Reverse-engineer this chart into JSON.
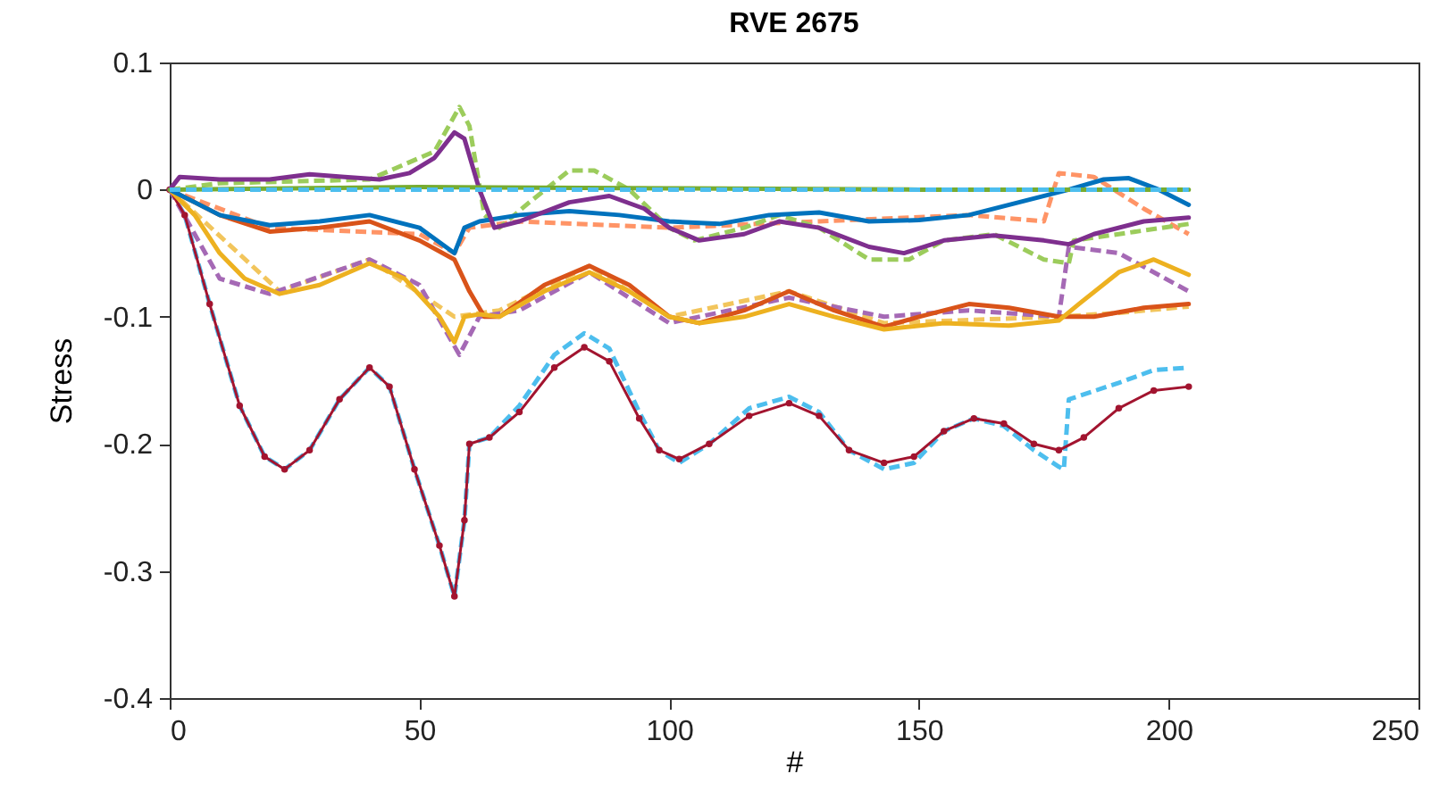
{
  "chart_data": {
    "type": "line",
    "title": "RVE 2675",
    "xlabel": "#",
    "ylabel": "Stress",
    "xlim": [
      0,
      250
    ],
    "xticks": [
      0,
      50,
      100,
      150,
      200,
      250
    ],
    "ylim": [
      -0.4,
      0.1
    ],
    "yticks": [
      -0.4,
      -0.3,
      -0.2,
      -0.1,
      0,
      0.1
    ],
    "grid": false,
    "series": [
      {
        "color": "#4dbeee",
        "line_style": "dashed",
        "x": [
          0,
          3,
          8,
          14,
          19,
          23,
          28,
          34,
          40,
          44,
          49,
          54,
          57,
          59,
          60,
          64,
          70,
          77,
          83,
          88,
          94,
          98,
          102,
          108,
          116,
          124,
          130,
          136,
          143,
          149,
          155,
          161,
          167,
          173,
          178,
          179,
          180,
          190,
          197,
          204
        ],
        "values": [
          0,
          -0.02,
          -0.09,
          -0.17,
          -0.21,
          -0.22,
          -0.205,
          -0.165,
          -0.14,
          -0.155,
          -0.22,
          -0.28,
          -0.32,
          -0.26,
          -0.2,
          -0.195,
          -0.17,
          -0.13,
          -0.113,
          -0.125,
          -0.175,
          -0.205,
          -0.215,
          -0.2,
          -0.172,
          -0.163,
          -0.175,
          -0.205,
          -0.22,
          -0.215,
          -0.19,
          -0.18,
          -0.186,
          -0.205,
          -0.218,
          -0.22,
          -0.165,
          -0.152,
          -0.142,
          -0.14
        ]
      },
      {
        "color": "#ff9466",
        "line_style": "dashed",
        "x": [
          0,
          20,
          50,
          57,
          60,
          70,
          100,
          130,
          160,
          175,
          178,
          185,
          195,
          204
        ],
        "values": [
          0,
          -0.03,
          -0.035,
          -0.05,
          -0.03,
          -0.025,
          -0.03,
          -0.025,
          -0.02,
          -0.025,
          0.013,
          0.01,
          -0.015,
          -0.035
        ]
      },
      {
        "color": "#f2c55c",
        "line_style": "dashed",
        "x": [
          0,
          22,
          40,
          57,
          66,
          84,
          100,
          124,
          143,
          178,
          190,
          204
        ],
        "values": [
          0,
          -0.08,
          -0.055,
          -0.1,
          -0.095,
          -0.06,
          -0.1,
          -0.08,
          -0.105,
          -0.1,
          -0.097,
          -0.092
        ]
      },
      {
        "color": "#a569b5",
        "line_style": "dashed",
        "x": [
          0,
          10,
          20,
          40,
          50,
          58,
          62,
          70,
          84,
          100,
          124,
          143,
          160,
          178,
          180,
          190,
          204
        ],
        "values": [
          0,
          -0.07,
          -0.082,
          -0.055,
          -0.075,
          -0.13,
          -0.1,
          -0.095,
          -0.065,
          -0.105,
          -0.085,
          -0.1,
          -0.095,
          -0.1,
          -0.045,
          -0.05,
          -0.08
        ]
      },
      {
        "color": "#9ccc5c",
        "line_style": "dashed",
        "x": [
          0,
          10,
          40,
          53,
          58,
          60,
          63,
          66,
          72,
          80,
          85,
          92,
          100,
          105,
          115,
          122,
          130,
          140,
          148,
          155,
          165,
          175,
          180,
          181,
          190,
          204
        ],
        "values": [
          0,
          0.005,
          0.008,
          0.03,
          0.065,
          0.05,
          -0.02,
          -0.03,
          -0.01,
          0.015,
          0.015,
          0,
          -0.03,
          -0.04,
          -0.03,
          -0.02,
          -0.03,
          -0.055,
          -0.055,
          -0.04,
          -0.035,
          -0.055,
          -0.058,
          -0.04,
          -0.035,
          -0.027
        ]
      },
      {
        "color": "#a2142f",
        "line_style": "solid",
        "marker": "circle",
        "x": [
          0,
          3,
          8,
          14,
          19,
          23,
          28,
          34,
          40,
          44,
          49,
          54,
          57,
          59,
          60,
          64,
          70,
          77,
          83,
          88,
          94,
          98,
          102,
          108,
          116,
          124,
          130,
          136,
          143,
          149,
          155,
          161,
          167,
          173,
          178,
          183,
          190,
          197,
          204
        ],
        "values": [
          0,
          -0.02,
          -0.09,
          -0.17,
          -0.21,
          -0.22,
          -0.205,
          -0.165,
          -0.14,
          -0.155,
          -0.22,
          -0.28,
          -0.32,
          -0.26,
          -0.2,
          -0.195,
          -0.175,
          -0.14,
          -0.124,
          -0.135,
          -0.18,
          -0.205,
          -0.212,
          -0.2,
          -0.178,
          -0.168,
          -0.178,
          -0.205,
          -0.215,
          -0.21,
          -0.19,
          -0.18,
          -0.184,
          -0.2,
          -0.205,
          -0.195,
          -0.172,
          -0.158,
          -0.155
        ]
      },
      {
        "color": "#d95319",
        "line_style": "solid",
        "x": [
          0,
          5,
          10,
          20,
          30,
          40,
          50,
          57,
          60,
          63,
          66,
          75,
          84,
          92,
          100,
          106,
          115,
          124,
          133,
          143,
          150,
          160,
          168,
          178,
          185,
          195,
          204
        ],
        "values": [
          0,
          -0.01,
          -0.02,
          -0.033,
          -0.03,
          -0.025,
          -0.04,
          -0.055,
          -0.08,
          -0.1,
          -0.1,
          -0.075,
          -0.06,
          -0.075,
          -0.1,
          -0.105,
          -0.095,
          -0.08,
          -0.095,
          -0.108,
          -0.1,
          -0.09,
          -0.093,
          -0.1,
          -0.1,
          -0.093,
          -0.09
        ]
      },
      {
        "color": "#edb120",
        "line_style": "solid",
        "x": [
          0,
          5,
          10,
          15,
          22,
          30,
          40,
          47,
          54,
          57,
          59,
          62,
          66,
          75,
          84,
          92,
          100,
          106,
          115,
          124,
          133,
          143,
          155,
          168,
          178,
          182,
          190,
          197,
          204
        ],
        "values": [
          0,
          -0.02,
          -0.05,
          -0.07,
          -0.082,
          -0.075,
          -0.058,
          -0.07,
          -0.1,
          -0.12,
          -0.1,
          -0.098,
          -0.1,
          -0.08,
          -0.065,
          -0.08,
          -0.1,
          -0.105,
          -0.1,
          -0.09,
          -0.1,
          -0.11,
          -0.105,
          -0.107,
          -0.103,
          -0.09,
          -0.065,
          -0.055,
          -0.067
        ]
      },
      {
        "color": "#0072bd",
        "line_style": "solid",
        "x": [
          0,
          5,
          10,
          20,
          30,
          40,
          50,
          57,
          59,
          62,
          70,
          80,
          90,
          100,
          110,
          120,
          130,
          140,
          150,
          160,
          170,
          180,
          187,
          192,
          198,
          204
        ],
        "values": [
          0,
          -0.01,
          -0.02,
          -0.028,
          -0.025,
          -0.02,
          -0.03,
          -0.05,
          -0.03,
          -0.025,
          -0.02,
          -0.017,
          -0.02,
          -0.025,
          -0.027,
          -0.02,
          -0.018,
          -0.025,
          -0.024,
          -0.02,
          -0.01,
          0,
          0.008,
          0.009,
          0,
          -0.012
        ]
      },
      {
        "color": "#7e2f8e",
        "line_style": "solid",
        "x": [
          0,
          2,
          10,
          20,
          28,
          35,
          42,
          48,
          53,
          57,
          59,
          62,
          65,
          70,
          80,
          88,
          95,
          100,
          106,
          115,
          122,
          130,
          140,
          147,
          155,
          165,
          175,
          180,
          185,
          195,
          204
        ],
        "values": [
          0,
          0.01,
          0.008,
          0.008,
          0.012,
          0.01,
          0.008,
          0.013,
          0.025,
          0.045,
          0.04,
          0,
          -0.03,
          -0.025,
          -0.01,
          -0.005,
          -0.015,
          -0.03,
          -0.04,
          -0.035,
          -0.025,
          -0.03,
          -0.045,
          -0.05,
          -0.04,
          -0.036,
          -0.04,
          -0.043,
          -0.035,
          -0.025,
          -0.022
        ]
      },
      {
        "color": "#77ac30",
        "line_style": "solid",
        "x": [
          0,
          50,
          100,
          150,
          204
        ],
        "values": [
          0,
          0.002,
          0.001,
          0,
          0
        ]
      },
      {
        "color": "#4dbeee",
        "line_style": "dashed",
        "x": [
          0,
          50,
          100,
          150,
          204
        ],
        "values": [
          0,
          0,
          0,
          0,
          0
        ]
      }
    ]
  }
}
